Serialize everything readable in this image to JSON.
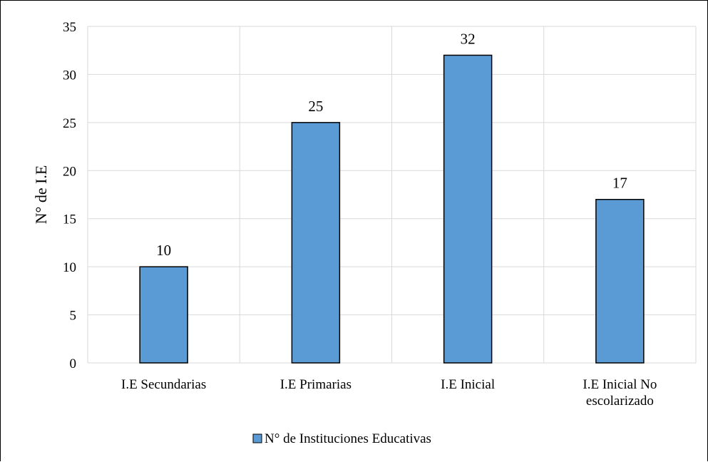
{
  "chart_data": {
    "type": "bar",
    "title": "",
    "xlabel": "",
    "ylabel": "N° de I.E",
    "categories": [
      "I.E Secundarias",
      "I.E Primarias",
      "I.E Inicial",
      "I.E Inicial No escolarizado"
    ],
    "category_lines": [
      [
        "I.E Secundarias"
      ],
      [
        "I.E Primarias"
      ],
      [
        "I.E Inicial"
      ],
      [
        "I.E Inicial No",
        "escolarizado"
      ]
    ],
    "series": [
      {
        "name": "N° de Instituciones Educativas",
        "values": [
          10,
          25,
          32,
          17
        ],
        "color": "#5b9bd5"
      }
    ],
    "ylim": [
      0,
      35
    ],
    "yticks": [
      0,
      5,
      10,
      15,
      20,
      25,
      30,
      35
    ],
    "grid": true,
    "legend": "bottom-center",
    "data_labels": true
  }
}
